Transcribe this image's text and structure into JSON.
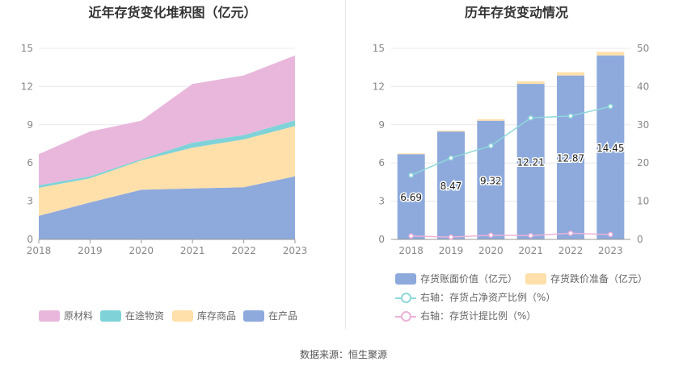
{
  "left": {
    "title": "近年存货变化堆积图（亿元）",
    "chart_data": {
      "type": "area",
      "stacked": true,
      "categories": [
        "2018",
        "2019",
        "2020",
        "2021",
        "2022",
        "2023"
      ],
      "ylim": [
        0,
        15
      ],
      "yticks": [
        "0",
        "3",
        "6",
        "9",
        "12",
        "15"
      ],
      "series": [
        {
          "name": "在产品",
          "color": "#8eaadc",
          "values": [
            1.85,
            2.9,
            3.9,
            4.0,
            4.1,
            4.95
          ]
        },
        {
          "name": "库存商品",
          "color": "#ffe0aa",
          "values": [
            2.2,
            1.9,
            2.3,
            3.2,
            3.75,
            3.95
          ]
        },
        {
          "name": "在途物资",
          "color": "#7fd3d8",
          "values": [
            0.2,
            0.15,
            0.1,
            0.4,
            0.35,
            0.45
          ]
        },
        {
          "name": "原材料",
          "color": "#e9b7dc",
          "values": [
            2.44,
            3.52,
            3.02,
            4.61,
            4.67,
            5.1
          ]
        }
      ],
      "legend_order": [
        "原材料",
        "在途物资",
        "库存商品",
        "在产品"
      ]
    }
  },
  "right": {
    "title": "历年存货变动情况",
    "chart_data": {
      "type": "bar",
      "categories": [
        "2018",
        "2019",
        "2020",
        "2021",
        "2022",
        "2023"
      ],
      "ylim_left": [
        0,
        15
      ],
      "yticks_left": [
        "0",
        "3",
        "6",
        "9",
        "12",
        "15"
      ],
      "ylim_right": [
        0,
        50
      ],
      "yticks_right": [
        "0",
        "10",
        "20",
        "30",
        "40",
        "50"
      ],
      "series": [
        {
          "name": "存货账面价值（亿元）",
          "type": "bar",
          "color": "#8eaadc",
          "values": [
            6.69,
            8.47,
            9.32,
            12.21,
            12.87,
            14.45
          ],
          "labels": [
            "6.69",
            "8.47",
            "9.32",
            "12.21",
            "12.87",
            "14.45"
          ]
        },
        {
          "name": "存货跌价准备（亿元）",
          "type": "bar",
          "color": "#ffe0aa",
          "values": [
            0.06,
            0.08,
            0.12,
            0.2,
            0.26,
            0.28
          ]
        },
        {
          "name": "右轴：存货占净资产比例（%）",
          "type": "line",
          "color": "#8ed8db",
          "values": [
            16.8,
            21.3,
            24.5,
            31.8,
            32.3,
            34.8
          ]
        },
        {
          "name": "右轴：存货计提比例（%）",
          "type": "line",
          "color": "#ecb2da",
          "values": [
            0.9,
            0.6,
            1.1,
            1.0,
            1.6,
            1.3
          ]
        }
      ]
    }
  },
  "source": "数据来源：恒生聚源"
}
